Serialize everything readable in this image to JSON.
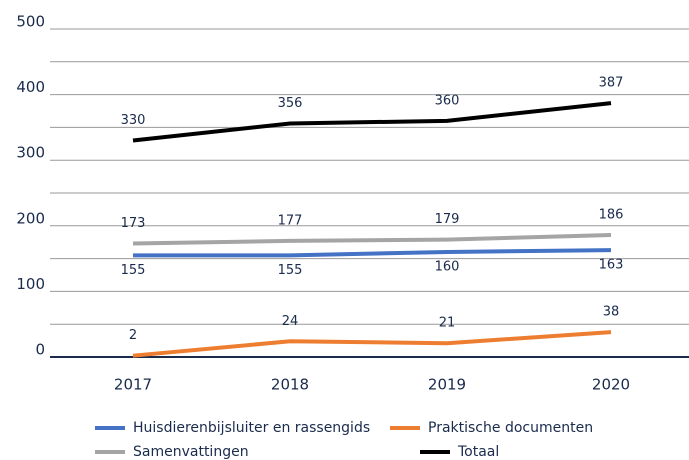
{
  "chart_data": {
    "type": "line",
    "categories": [
      "2017",
      "2018",
      "2019",
      "2020"
    ],
    "series": [
      {
        "name": "Huisdierenbijsluiter en rassengids",
        "color": "#4472c4",
        "values": [
          155,
          155,
          160,
          163
        ],
        "label_position": "below"
      },
      {
        "name": "Praktische documenten",
        "color": "#ed7d31",
        "values": [
          2,
          24,
          21,
          38
        ],
        "label_position": "above"
      },
      {
        "name": "Samenvattingen",
        "color": "#a5a5a5",
        "values": [
          173,
          177,
          179,
          186
        ],
        "label_position": "above"
      },
      {
        "name": "Totaal",
        "color": "#000000",
        "values": [
          330,
          356,
          360,
          387
        ],
        "label_position": "above"
      }
    ],
    "ylim": [
      0,
      500
    ],
    "yticks": [
      0,
      100,
      200,
      300,
      400,
      500
    ],
    "minor_yticks": [
      50,
      150,
      250,
      350,
      450
    ],
    "grid": true,
    "legend": "bottom"
  }
}
